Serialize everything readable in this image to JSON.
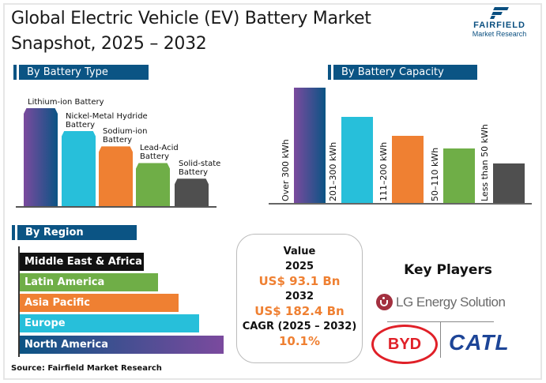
{
  "title": {
    "line1": "Global Electric Vehicle (EV) Battery Market",
    "line2": "Snapshot, 2025 – 2032"
  },
  "logo": {
    "name": "FAIRFIELD",
    "sub": "Market Research"
  },
  "colors": {
    "header": "#0b5484",
    "purple": "#7b4a9e",
    "cyan": "#27bfda",
    "orange": "#ef8032",
    "green": "#6fae47",
    "dark": "#4f4f4f",
    "black": "#111111",
    "accent": "#ef8032"
  },
  "chart_data": [
    {
      "type": "bar",
      "title": "By Battery Type",
      "categories": [
        "Lithium-ion Battery",
        "Nickel-Metal Hydride Battery",
        "Sodium-ion Battery",
        "Lead-Acid Battery",
        "Solid-state Battery"
      ],
      "label_lines": [
        [
          "Lithium-ion Battery"
        ],
        [
          "Nickel-Metal Hydride",
          "Battery"
        ],
        [
          "Sodium-ion",
          "Battery"
        ],
        [
          "Lead-Acid",
          "Battery"
        ],
        [
          "Solid-state",
          "Battery"
        ]
      ],
      "values": [
        100,
        77,
        61,
        44,
        28
      ],
      "unit": "relative %",
      "colors": [
        "purple",
        "cyan",
        "orange",
        "green",
        "dark"
      ]
    },
    {
      "type": "bar",
      "title": "By Battery Capacity",
      "categories": [
        "Over 300 kWh",
        "201–300 kWh",
        "111–200 kWh",
        "50–110 kWh",
        "Less than 50 kWh"
      ],
      "values": [
        100,
        75,
        58,
        47,
        34
      ],
      "unit": "relative %",
      "colors": [
        "purple",
        "cyan",
        "orange",
        "green",
        "dark"
      ]
    },
    {
      "type": "bar",
      "orientation": "horizontal",
      "title": "By Region",
      "categories": [
        "Middle East & Africa",
        "Latin America",
        "Asia Pacific",
        "Europe",
        "North America"
      ],
      "values": [
        61,
        68,
        78,
        88,
        100
      ],
      "unit": "relative %",
      "colors": [
        "black",
        "green",
        "orange",
        "cyan",
        "purple"
      ]
    }
  ],
  "value_box": {
    "label": "Value",
    "year1": "2025",
    "value1": "US$ 93.1 Bn",
    "year2": "2032",
    "value2": "US$ 182.4 Bn",
    "cagr_label": "CAGR (2025 – 2032)",
    "cagr": "10.1%"
  },
  "key_players": {
    "title": "Key Players",
    "players": [
      "LG Energy Solution",
      "BYD",
      "CATL"
    ]
  },
  "source": "Source: Fairfield Market Research"
}
